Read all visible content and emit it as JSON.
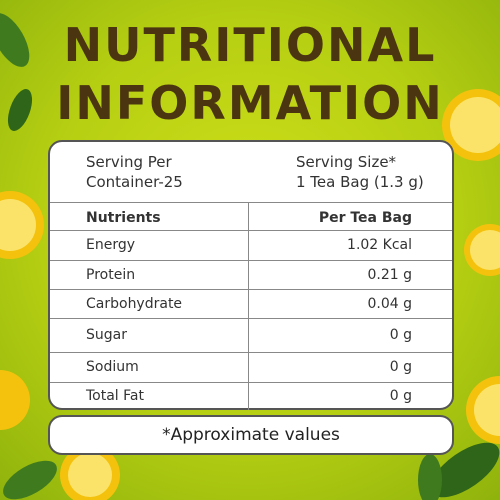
{
  "header": {
    "title": [
      "NUTRITIONAL",
      "INFORMATION"
    ]
  },
  "serving": {
    "left": [
      "Serving Per",
      "Container-25"
    ],
    "right": [
      "Serving Size*",
      "1 Tea Bag (1.3 g)"
    ]
  },
  "table": {
    "header": [
      "Nutrients",
      "Per Tea Bag"
    ],
    "rows": [
      [
        "Energy",
        "1.02 Kcal"
      ],
      [
        "Protein",
        "0.21 g"
      ],
      [
        "Carbohydrate",
        "0.04 g"
      ],
      [
        "Sugar",
        "0 g"
      ],
      [
        "Sodium",
        "0 g"
      ],
      [
        "Total Fat",
        "0 g"
      ]
    ]
  },
  "footnote": "*Approximate values"
}
